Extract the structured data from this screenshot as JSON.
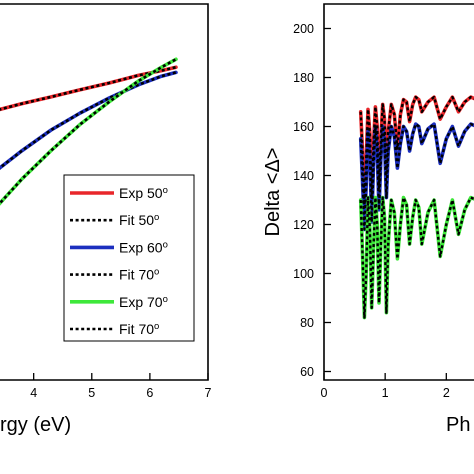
{
  "chart_data": [
    {
      "type": "line",
      "xlabel": "rgy (eV)",
      "ylabel": "",
      "xlim": [
        3.3,
        7
      ],
      "ylim": [
        0,
        100
      ],
      "x_ticks": [
        "4",
        "5",
        "6",
        "7"
      ],
      "grid": false,
      "legend_position": "bottom-right",
      "series": [
        {
          "name": "Exp 50",
          "sup": "o",
          "style": "solid",
          "color": "#e8262a",
          "x": [
            3.3,
            3.8,
            4.3,
            4.8,
            5.3,
            5.8,
            6.2,
            6.45
          ],
          "y": [
            71.5,
            73.5,
            75.3,
            77.2,
            79.0,
            81.0,
            82.3,
            83.2
          ]
        },
        {
          "name": "Fit 50",
          "sup": "o",
          "style": "dotted",
          "color": "#000000",
          "x": [
            3.3,
            3.8,
            4.3,
            4.8,
            5.3,
            5.8,
            6.2,
            6.45
          ],
          "y": [
            71.5,
            73.5,
            75.3,
            77.2,
            79.0,
            81.0,
            82.3,
            83.2
          ]
        },
        {
          "name": "Exp 60",
          "sup": "o",
          "style": "solid",
          "color": "#1c2fbf",
          "x": [
            3.3,
            3.8,
            4.3,
            4.8,
            5.3,
            5.8,
            6.2,
            6.45
          ],
          "y": [
            55.0,
            61.0,
            66.5,
            71.0,
            75.0,
            78.5,
            80.8,
            81.8
          ]
        },
        {
          "name": "Fit 70",
          "sup": "o",
          "style": "dotted",
          "color": "#000000",
          "x": [
            3.3,
            3.8,
            4.3,
            4.8,
            5.3,
            5.8,
            6.2,
            6.45
          ],
          "y": [
            55.0,
            61.0,
            66.5,
            71.0,
            75.0,
            78.5,
            80.8,
            81.8
          ]
        },
        {
          "name": "Exp 70",
          "sup": "o",
          "style": "solid",
          "color": "#3ee83a",
          "x": [
            3.3,
            3.8,
            4.3,
            4.8,
            5.3,
            5.8,
            6.2,
            6.45
          ],
          "y": [
            45.0,
            53.5,
            61.0,
            68.0,
            74.0,
            79.5,
            83.2,
            85.3
          ]
        },
        {
          "name": "Fit 70",
          "sup": "o",
          "style": "dotted",
          "color": "#000000",
          "x": [
            3.3,
            3.8,
            4.3,
            4.8,
            5.3,
            5.8,
            6.2,
            6.45
          ],
          "y": [
            45.0,
            53.5,
            61.0,
            68.0,
            74.0,
            79.5,
            83.2,
            85.3
          ]
        }
      ]
    },
    {
      "type": "line",
      "xlabel": "Ph",
      "ylabel": "Delta <Δ>",
      "xlim": [
        0,
        2.6
      ],
      "ylim": [
        50,
        210
      ],
      "x_ticks": [
        "0",
        "1",
        "2"
      ],
      "y_ticks": [
        "60",
        "80",
        "100",
        "120",
        "140",
        "160",
        "180",
        "200"
      ],
      "grid": false,
      "series": [
        {
          "name": "",
          "color": "#e8262a",
          "style": "solid",
          "x": [
            0.6,
            0.63,
            0.66,
            0.69,
            0.72,
            0.75,
            0.78,
            0.81,
            0.84,
            0.87,
            0.9,
            0.93,
            0.96,
            0.99,
            1.02,
            1.05,
            1.1,
            1.15,
            1.2,
            1.25,
            1.3,
            1.35,
            1.4,
            1.45,
            1.5,
            1.55,
            1.6,
            1.7,
            1.8,
            1.9,
            2.0,
            2.1,
            2.2,
            2.3,
            2.4,
            2.5,
            2.6
          ],
          "y": [
            166,
            150,
            128,
            147,
            167,
            157,
            131,
            153,
            168,
            160,
            135,
            155,
            169,
            163,
            140,
            158,
            169,
            165,
            151,
            165,
            171,
            170,
            162,
            169,
            172,
            171,
            166,
            170,
            172,
            163,
            168,
            172,
            166,
            170,
            172,
            171,
            171
          ]
        },
        {
          "name": "",
          "color": "#1c2fbf",
          "style": "solid",
          "x": [
            0.6,
            0.63,
            0.66,
            0.69,
            0.72,
            0.75,
            0.78,
            0.81,
            0.84,
            0.87,
            0.9,
            0.93,
            0.96,
            0.99,
            1.02,
            1.05,
            1.1,
            1.15,
            1.2,
            1.25,
            1.3,
            1.35,
            1.4,
            1.45,
            1.5,
            1.55,
            1.6,
            1.7,
            1.8,
            1.9,
            2.0,
            2.1,
            2.2,
            2.3,
            2.4,
            2.5,
            2.6
          ],
          "y": [
            155,
            138,
            118,
            136,
            158,
            147,
            121,
            144,
            160,
            150,
            126,
            147,
            160,
            154,
            131,
            150,
            160,
            156,
            143,
            153,
            160,
            158,
            150,
            157,
            161,
            160,
            153,
            159,
            161,
            145,
            155,
            160,
            152,
            158,
            161,
            160,
            160
          ]
        },
        {
          "name": "",
          "color": "#3ee83a",
          "style": "solid",
          "x": [
            0.6,
            0.63,
            0.66,
            0.69,
            0.72,
            0.75,
            0.78,
            0.81,
            0.84,
            0.87,
            0.9,
            0.93,
            0.96,
            0.99,
            1.02,
            1.05,
            1.1,
            1.15,
            1.2,
            1.25,
            1.3,
            1.35,
            1.4,
            1.45,
            1.5,
            1.55,
            1.6,
            1.7,
            1.8,
            1.9,
            2.0,
            2.1,
            2.2,
            2.3,
            2.4,
            2.5,
            2.6
          ],
          "y": [
            130,
            108,
            82,
            100,
            131,
            118,
            86,
            110,
            131,
            120,
            88,
            112,
            131,
            123,
            84,
            112,
            130,
            125,
            106,
            120,
            131,
            128,
            112,
            123,
            130,
            127,
            112,
            125,
            130,
            107,
            120,
            130,
            116,
            126,
            131,
            130,
            130
          ]
        },
        {
          "name": "",
          "color": "#000000",
          "style": "dotted",
          "x": [
            0.6,
            0.63,
            0.66,
            0.69,
            0.72,
            0.75,
            0.78,
            0.81,
            0.84,
            0.87,
            0.9,
            0.93,
            0.96,
            0.99,
            1.02,
            1.05,
            1.1,
            1.15,
            1.2,
            1.25,
            1.3,
            1.35,
            1.4,
            1.45,
            1.5,
            1.55,
            1.6,
            1.7,
            1.8,
            1.9,
            2.0,
            2.1,
            2.2,
            2.3,
            2.4,
            2.5,
            2.6
          ],
          "y": [
            166,
            150,
            128,
            147,
            167,
            157,
            131,
            153,
            168,
            160,
            135,
            155,
            169,
            163,
            140,
            158,
            169,
            165,
            151,
            165,
            171,
            170,
            162,
            169,
            172,
            171,
            166,
            170,
            172,
            163,
            168,
            172,
            166,
            170,
            172,
            171,
            171
          ]
        },
        {
          "name": "",
          "color": "#000000",
          "style": "dotted",
          "x": [
            0.6,
            0.63,
            0.66,
            0.69,
            0.72,
            0.75,
            0.78,
            0.81,
            0.84,
            0.87,
            0.9,
            0.93,
            0.96,
            0.99,
            1.02,
            1.05,
            1.1,
            1.15,
            1.2,
            1.25,
            1.3,
            1.35,
            1.4,
            1.45,
            1.5,
            1.55,
            1.6,
            1.7,
            1.8,
            1.9,
            2.0,
            2.1,
            2.2,
            2.3,
            2.4,
            2.5,
            2.6
          ],
          "y": [
            155,
            138,
            118,
            136,
            158,
            147,
            121,
            144,
            160,
            150,
            126,
            147,
            160,
            154,
            131,
            150,
            160,
            156,
            143,
            153,
            160,
            158,
            150,
            157,
            161,
            160,
            153,
            159,
            161,
            145,
            155,
            160,
            152,
            158,
            161,
            160,
            160
          ]
        },
        {
          "name": "",
          "color": "#000000",
          "style": "dotted",
          "x": [
            0.6,
            0.63,
            0.66,
            0.69,
            0.72,
            0.75,
            0.78,
            0.81,
            0.84,
            0.87,
            0.9,
            0.93,
            0.96,
            0.99,
            1.02,
            1.05,
            1.1,
            1.15,
            1.2,
            1.25,
            1.3,
            1.35,
            1.4,
            1.45,
            1.5,
            1.55,
            1.6,
            1.7,
            1.8,
            1.9,
            2.0,
            2.1,
            2.2,
            2.3,
            2.4,
            2.5,
            2.6
          ],
          "y": [
            130,
            108,
            82,
            100,
            131,
            118,
            86,
            110,
            131,
            120,
            88,
            112,
            131,
            123,
            84,
            112,
            130,
            125,
            106,
            120,
            131,
            128,
            112,
            123,
            130,
            127,
            112,
            125,
            130,
            107,
            120,
            130,
            116,
            126,
            131,
            130,
            130
          ]
        }
      ]
    }
  ]
}
